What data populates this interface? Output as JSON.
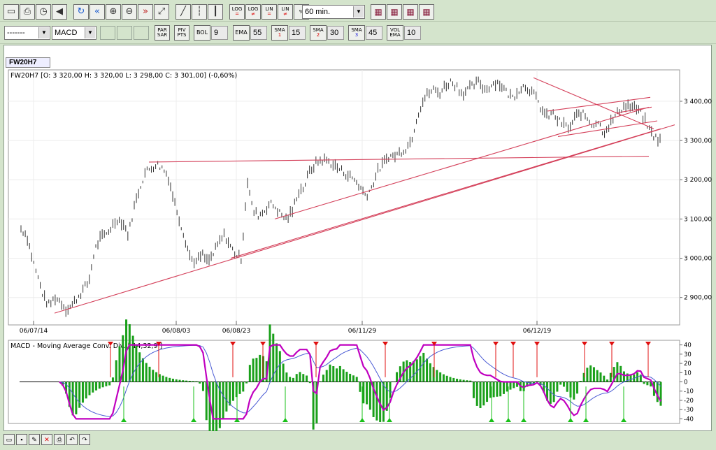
{
  "toolbar1": {
    "buttons": [
      {
        "name": "open-icon",
        "glyph": "▭"
      },
      {
        "name": "print-icon",
        "glyph": "⎙"
      },
      {
        "name": "clock-icon",
        "glyph": "◷"
      },
      {
        "name": "speaker-icon",
        "glyph": "◀"
      },
      {
        "name": "refresh-icon",
        "glyph": "↻"
      },
      {
        "name": "rewind-icon",
        "glyph": "«"
      },
      {
        "name": "zoom-in-icon",
        "glyph": "⊕"
      },
      {
        "name": "zoom-out-icon",
        "glyph": "⊖"
      },
      {
        "name": "forward-icon",
        "glyph": "»"
      },
      {
        "name": "fit-icon",
        "glyph": "⤢"
      },
      {
        "name": "line-chart-icon",
        "glyph": "╱"
      },
      {
        "name": "bar-chart-icon",
        "glyph": "┆"
      },
      {
        "name": "candle-chart-icon",
        "glyph": "┃"
      }
    ],
    "scale_buttons": [
      {
        "top": "LOG",
        "bottom": "="
      },
      {
        "top": "LOG",
        "bottom": "≠"
      },
      {
        "top": "LIN",
        "bottom": "="
      },
      {
        "top": "LIN",
        "bottom": "≠"
      },
      {
        "top": "%",
        "bottom": ""
      }
    ],
    "interval": "60 min.",
    "right_icons": [
      "chart-window-icon",
      "color-icon",
      "indicator-icon",
      "window-icon"
    ]
  },
  "toolbar2": {
    "style_select": "-------",
    "indicator_select": "MACD",
    "par_sar": [
      "PAR",
      "SAR"
    ],
    "piv_pts": [
      "PIV",
      "PTS"
    ],
    "bol_label": "BOL",
    "bol_value": "9",
    "ema_label": "EMA",
    "ema_value": "55",
    "sma1_label": "SMA",
    "sma1_sub": "1",
    "sma1_value": "15",
    "sma2_label": "SMA",
    "sma2_sub": "2",
    "sma2_value": "30",
    "sma3_label": "SMA",
    "sma3_sub": "3",
    "sma3_value": "45",
    "vol_ema": [
      "VOL",
      "EMA"
    ],
    "vol_value": "10"
  },
  "chart_tab": "FW20H7",
  "colors": {
    "trend_line": "#d4405a",
    "bars": "#333333",
    "macd_line": "#c000c0",
    "signal_line": "#4a5bd4",
    "hist": "#1aa01a",
    "buy_arrow": "#18c018",
    "sell_arrow": "#e01010"
  },
  "chart_data": [
    {
      "type": "bar",
      "title": "FW20H7 [O: 3 320,00  H: 3 320,00  L: 3 298,00  C: 3 301,00] (-0,60%)",
      "x_tick_labels": [
        "06/07/14",
        "06/08/03",
        "06/08/23",
        "06/11/29",
        "06/12/19"
      ],
      "y_tick_labels": [
        "3 400,00",
        "3 300,00",
        "3 200,00",
        "3 100,00",
        "3 000,00",
        "2 900,00"
      ],
      "ylim": [
        2830,
        3480
      ],
      "close_path": [
        [
          0,
          3075
        ],
        [
          3,
          3060
        ],
        [
          6,
          3000
        ],
        [
          9,
          2950
        ],
        [
          12,
          2900
        ],
        [
          15,
          2880
        ],
        [
          18,
          2900
        ],
        [
          21,
          2890
        ],
        [
          24,
          2870
        ],
        [
          27,
          2880
        ],
        [
          30,
          2900
        ],
        [
          33,
          2920
        ],
        [
          36,
          2940
        ],
        [
          39,
          3020
        ],
        [
          42,
          3050
        ],
        [
          45,
          3060
        ],
        [
          48,
          3080
        ],
        [
          51,
          3100
        ],
        [
          54,
          3090
        ],
        [
          57,
          3060
        ],
        [
          60,
          3130
        ],
        [
          63,
          3180
        ],
        [
          66,
          3220
        ],
        [
          69,
          3230
        ],
        [
          72,
          3240
        ],
        [
          75,
          3230
        ],
        [
          78,
          3210
        ],
        [
          81,
          3150
        ],
        [
          84,
          3100
        ],
        [
          87,
          3050
        ],
        [
          90,
          3000
        ],
        [
          93,
          2990
        ],
        [
          96,
          3010
        ],
        [
          99,
          2990
        ],
        [
          102,
          3010
        ],
        [
          105,
          3040
        ],
        [
          108,
          3060
        ],
        [
          111,
          3030
        ],
        [
          114,
          3010
        ],
        [
          117,
          3000
        ],
        [
          120,
          3200
        ],
        [
          123,
          3120
        ],
        [
          126,
          3110
        ],
        [
          129,
          3120
        ],
        [
          132,
          3140
        ],
        [
          135,
          3130
        ],
        [
          138,
          3110
        ],
        [
          141,
          3100
        ],
        [
          144,
          3120
        ],
        [
          147,
          3170
        ],
        [
          150,
          3180
        ],
        [
          153,
          3220
        ],
        [
          156,
          3240
        ],
        [
          159,
          3250
        ],
        [
          162,
          3250
        ],
        [
          165,
          3240
        ],
        [
          168,
          3230
        ],
        [
          171,
          3220
        ],
        [
          174,
          3210
        ],
        [
          177,
          3200
        ],
        [
          180,
          3180
        ],
        [
          183,
          3160
        ],
        [
          186,
          3180
        ],
        [
          189,
          3220
        ],
        [
          192,
          3240
        ],
        [
          195,
          3260
        ],
        [
          198,
          3260
        ],
        [
          201,
          3270
        ],
        [
          204,
          3280
        ],
        [
          207,
          3300
        ],
        [
          210,
          3360
        ],
        [
          213,
          3400
        ],
        [
          216,
          3420
        ],
        [
          219,
          3430
        ],
        [
          222,
          3420
        ],
        [
          225,
          3440
        ],
        [
          228,
          3450
        ],
        [
          231,
          3440
        ],
        [
          234,
          3420
        ],
        [
          237,
          3430
        ],
        [
          240,
          3440
        ],
        [
          243,
          3450
        ],
        [
          246,
          3430
        ],
        [
          249,
          3440
        ],
        [
          252,
          3450
        ],
        [
          255,
          3440
        ],
        [
          258,
          3420
        ],
        [
          261,
          3410
        ],
        [
          264,
          3430
        ],
        [
          267,
          3440
        ],
        [
          270,
          3430
        ],
        [
          273,
          3410
        ],
        [
          276,
          3380
        ],
        [
          279,
          3360
        ],
        [
          282,
          3370
        ],
        [
          285,
          3350
        ],
        [
          288,
          3340
        ],
        [
          291,
          3330
        ],
        [
          294,
          3360
        ],
        [
          297,
          3370
        ],
        [
          300,
          3360
        ],
        [
          303,
          3340
        ],
        [
          306,
          3350
        ],
        [
          309,
          3320
        ],
        [
          312,
          3340
        ],
        [
          315,
          3360
        ],
        [
          318,
          3380
        ],
        [
          321,
          3390
        ],
        [
          324,
          3385
        ],
        [
          327,
          3380
        ],
        [
          330,
          3360
        ],
        [
          333,
          3330
        ],
        [
          336,
          3310
        ],
        [
          339,
          3300
        ]
      ]
    },
    {
      "type": "line",
      "title": "MACD - Moving Average Conv. Div. [ 14,32,9 ]",
      "y_tick_labels": [
        "40",
        "30",
        "20",
        "10",
        "0",
        "-10",
        "-20",
        "-30",
        "-40"
      ],
      "ylim": [
        -45,
        45
      ]
    }
  ],
  "bottom_icons": [
    "open-folder-icon",
    "save-icon",
    "settings-icon",
    "close-icon",
    "print-icon",
    "undo-icon",
    "redo-icon"
  ]
}
